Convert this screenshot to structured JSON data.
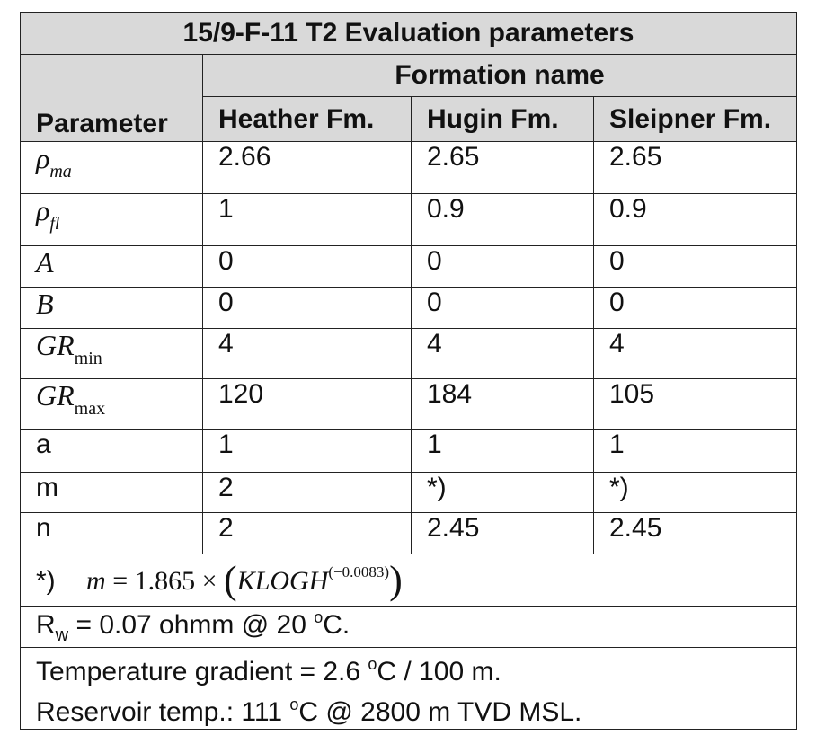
{
  "table": {
    "title": "15/9-F-11 T2 Evaluation parameters",
    "group_header": "Formation name",
    "param_header": "Parameter",
    "columns": [
      "Heather Fm.",
      "Hugin Fm.",
      "Sleipner Fm."
    ],
    "rows": [
      {
        "symbol": "ρ",
        "sub": "ma",
        "values": [
          "2.66",
          "2.65",
          "2.65"
        ]
      },
      {
        "symbol": "ρ",
        "sub": "fl",
        "values": [
          "1",
          "0.9",
          "0.9"
        ]
      },
      {
        "symbol": "A",
        "sub": "",
        "values": [
          "0",
          "0",
          "0"
        ]
      },
      {
        "symbol": "B",
        "sub": "",
        "values": [
          "0",
          "0",
          "0"
        ]
      },
      {
        "symbol": "GR",
        "sub": "min",
        "values": [
          "4",
          "4",
          "4"
        ]
      },
      {
        "symbol": "GR",
        "sub": "max",
        "values": [
          "120",
          "184",
          "105"
        ]
      },
      {
        "symbol": "a",
        "sub": "",
        "values": [
          "1",
          "1",
          "1"
        ]
      },
      {
        "symbol": "m",
        "sub": "",
        "values": [
          "2",
          "*)",
          "*)"
        ]
      },
      {
        "symbol": "n",
        "sub": "",
        "values": [
          "2",
          "2.45",
          "2.45"
        ]
      }
    ],
    "footnote": {
      "marker": "*)",
      "lhs": "m",
      "equals": "= 1.865 ×",
      "base": "KLOGH",
      "exponent": "(−0.0083)"
    },
    "rw_note": {
      "prefix": "R",
      "sub": "w",
      "text": " = 0.07 ohmm @ 20 ",
      "degree": "o",
      "unit": "C."
    },
    "temp_notes": {
      "gradient_text": "Temperature gradient = 2.6 ",
      "gradient_degree": "o",
      "gradient_unit": "C / 100 m.",
      "reservoir_text": "Reservoir temp.: 111 ",
      "reservoir_degree": "o",
      "reservoir_unit": "C @ 2800 m TVD MSL."
    }
  }
}
